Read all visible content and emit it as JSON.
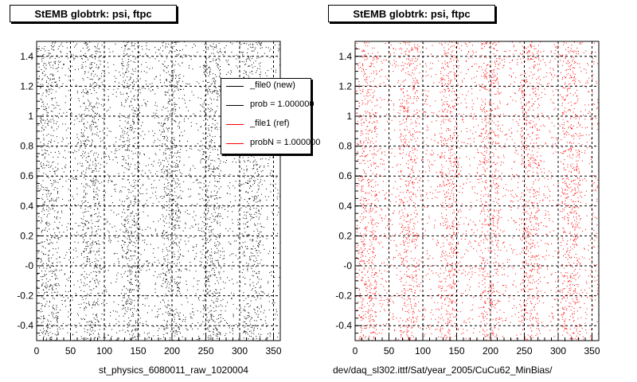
{
  "chart_data": [
    {
      "type": "scatter",
      "title": "StEMB globtrk: psi, ftpc",
      "xlabel": "st_physics_6080011_raw_1020004",
      "ylabel": "",
      "xlim": [
        0,
        360
      ],
      "ylim": [
        -0.5,
        1.5
      ],
      "x_ticks": [
        0,
        50,
        100,
        150,
        200,
        250,
        300,
        350
      ],
      "x_tick_labels": [
        "0",
        "50",
        "100",
        "150",
        "200",
        "250",
        "300",
        "350"
      ],
      "y_ticks": [
        -0.4,
        -0.2,
        0,
        0.2,
        0.4,
        0.6,
        0.8,
        1,
        1.2,
        1.4
      ],
      "y_tick_labels": [
        "-0.4",
        "-0.2",
        "-0",
        "0.2",
        "0.4",
        "0.6",
        "0.8",
        "1",
        "1.2",
        "1.4"
      ],
      "grid": true,
      "marker_color": "#000000",
      "legend_position": "top-right",
      "legend": [
        {
          "label": "_file0 (new)",
          "color": "#000000"
        },
        {
          "label": "prob = 1.000000",
          "color": "#000000"
        },
        {
          "label": "_file1 (ref)",
          "color": "#ff0000"
        },
        {
          "label": "probN = 1.000000",
          "color": "#ff0000"
        }
      ],
      "x_bands": [
        [
          5,
          32
        ],
        [
          65,
          92
        ],
        [
          125,
          152
        ],
        [
          185,
          212
        ],
        [
          245,
          272
        ],
        [
          305,
          332
        ]
      ]
    },
    {
      "type": "scatter",
      "title": "StEMB globtrk: psi, ftpc",
      "xlabel": "dev/daq_sl302.ittf/Sat/year_2005/CuCu62_MinBias/",
      "ylabel": "",
      "xlim": [
        0,
        360
      ],
      "ylim": [
        -0.5,
        1.5
      ],
      "x_ticks": [
        0,
        50,
        100,
        150,
        200,
        250,
        300,
        350
      ],
      "x_tick_labels": [
        "0",
        "50",
        "100",
        "150",
        "200",
        "250",
        "300",
        "350"
      ],
      "y_ticks": [
        -0.4,
        -0.2,
        0,
        0.2,
        0.4,
        0.6,
        0.8,
        1,
        1.2,
        1.4
      ],
      "y_tick_labels": [
        "-0.4",
        "-0.2",
        "-0",
        "0.2",
        "0.4",
        "0.6",
        "0.8",
        "1",
        "1.2",
        "1.4"
      ],
      "grid": true,
      "marker_color": "#ff0000",
      "x_bands": [
        [
          5,
          32
        ],
        [
          65,
          92
        ],
        [
          125,
          152
        ],
        [
          185,
          212
        ],
        [
          245,
          272
        ],
        [
          305,
          332
        ]
      ]
    }
  ]
}
